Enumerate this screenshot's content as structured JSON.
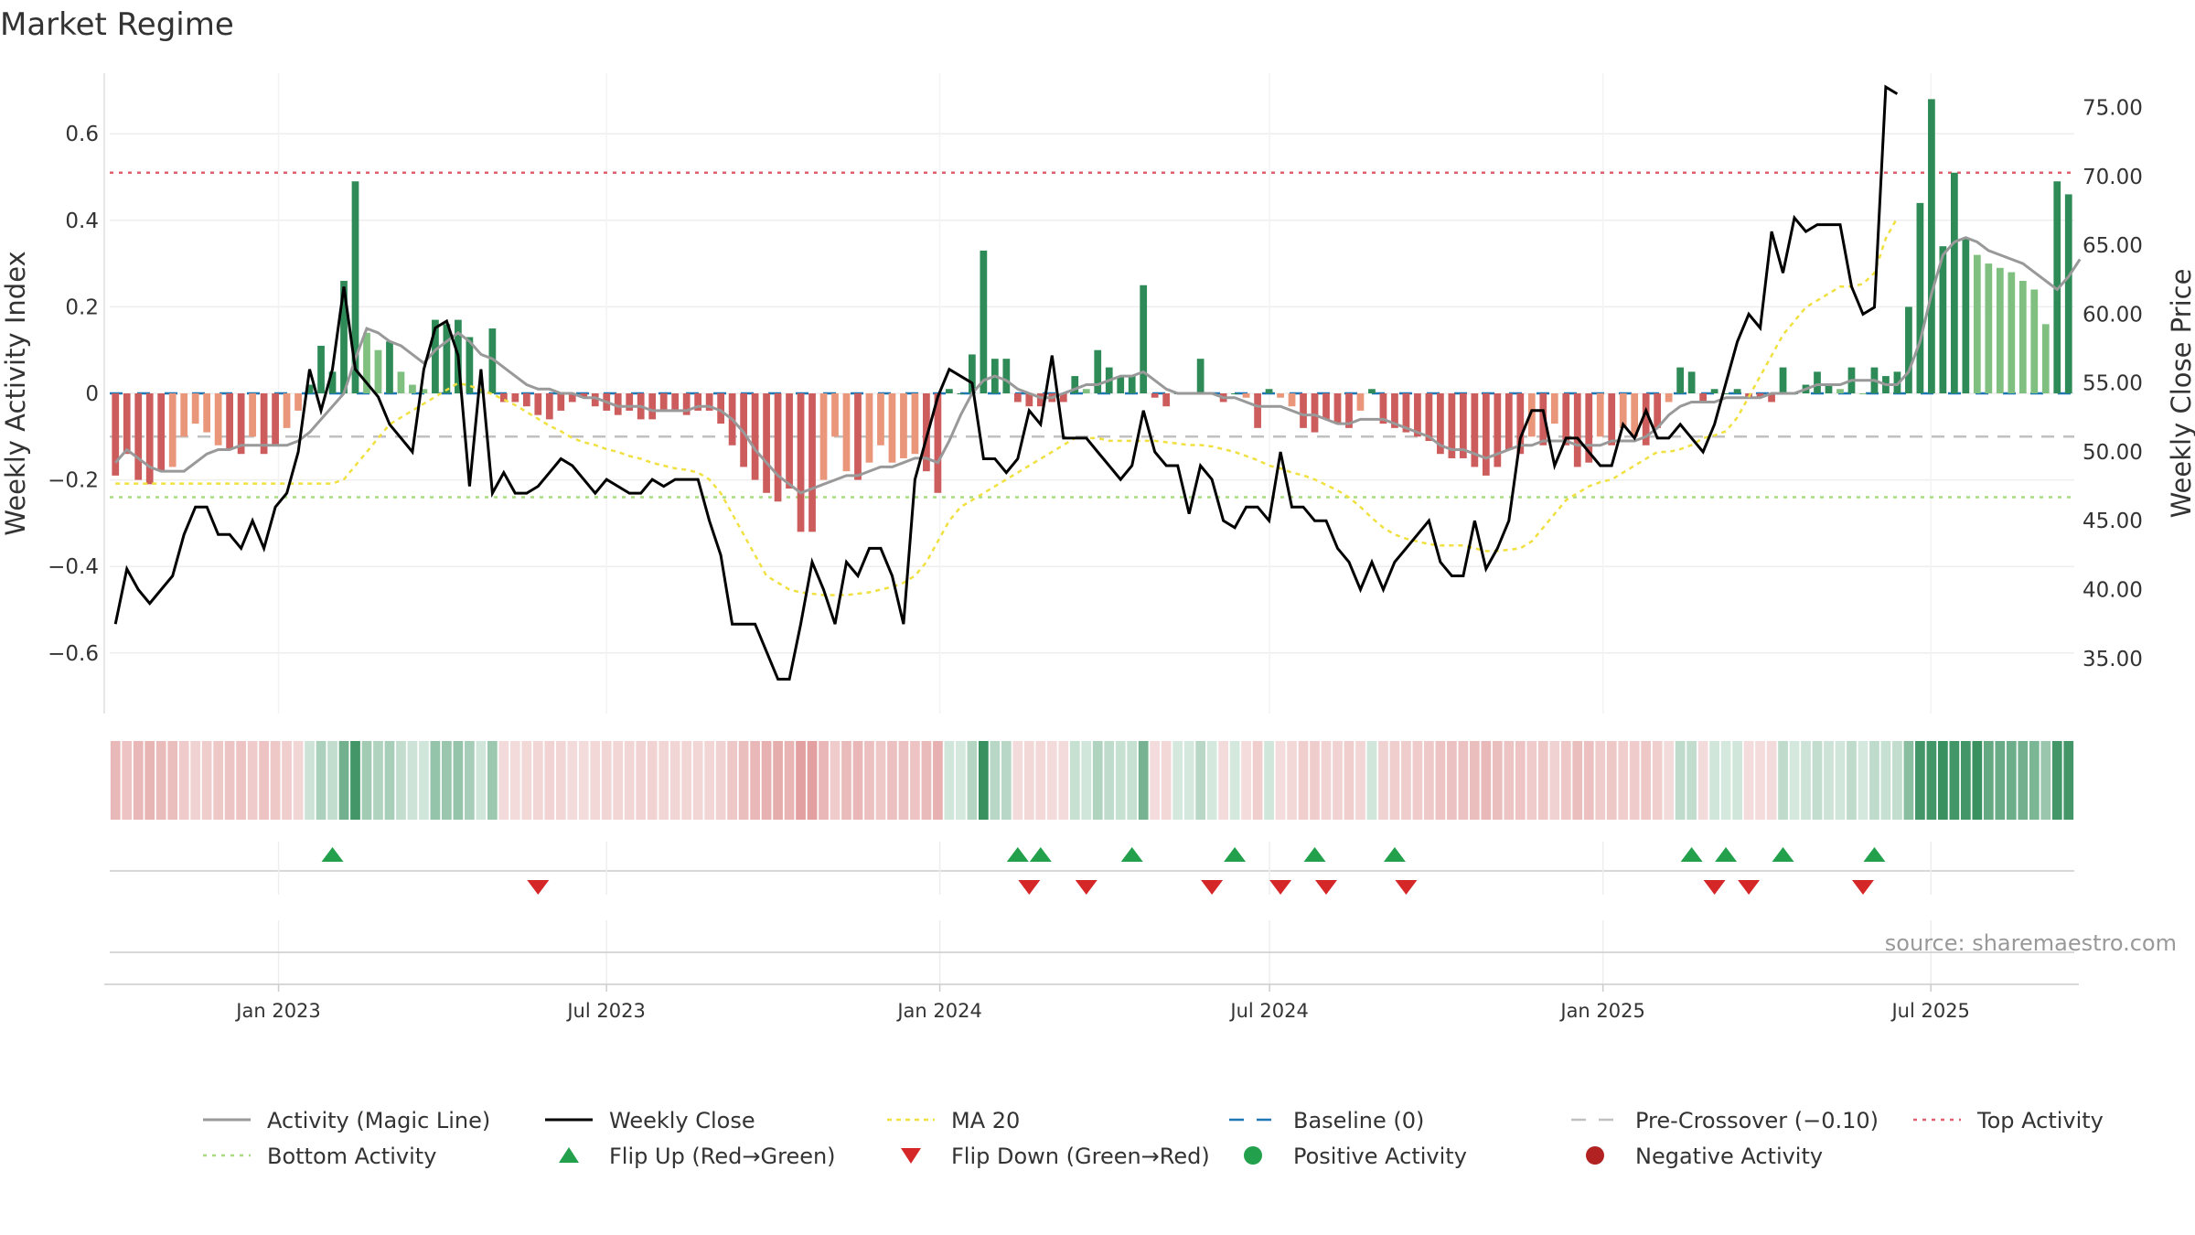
{
  "title": "Market Regime",
  "source": "source: sharemaestro.com",
  "colors": {
    "pos_dark": "#2e8b57",
    "pos_light": "#7fbf7f",
    "neg_dark": "#cd5c5c",
    "neg_light": "#e9967a",
    "weekly_close": "#000000",
    "magic_line": "#999999",
    "ma20": "#f0e040",
    "top_line": "#e06070",
    "bottom_line": "#a8dc80",
    "pre_cross": "#c0c0c0",
    "baseline": "#1f77b4",
    "flip_up": "#22a04b",
    "flip_down": "#d62728",
    "pos_dot": "#22a04b",
    "neg_dot": "#b22222"
  },
  "chart_data": {
    "type": "bar",
    "xlabel": "",
    "ylabel_left": "Weekly Activity Index",
    "ylabel_right": "Weekly Close Price",
    "ylim_left": [
      -0.74,
      0.74
    ],
    "ylim_right": [
      31.0,
      77.5
    ],
    "yticks_left": [
      {
        "v": 0.6,
        "label": "0.6"
      },
      {
        "v": 0.4,
        "label": "0.4"
      },
      {
        "v": 0.2,
        "label": "0.2"
      },
      {
        "v": 0,
        "label": "0"
      },
      {
        "v": -0.2,
        "label": "−0.2"
      },
      {
        "v": -0.4,
        "label": "−0.4"
      },
      {
        "v": -0.6,
        "label": "−0.6"
      }
    ],
    "yticks_right": [
      {
        "v": 75,
        "label": "75.00"
      },
      {
        "v": 70,
        "label": "70.00"
      },
      {
        "v": 65,
        "label": "65.00"
      },
      {
        "v": 60,
        "label": "60.00"
      },
      {
        "v": 55,
        "label": "55.00"
      },
      {
        "v": 50,
        "label": "50.00"
      },
      {
        "v": 45,
        "label": "45.00"
      },
      {
        "v": 40,
        "label": "40.00"
      },
      {
        "v": 35,
        "label": "35.00"
      }
    ],
    "date_range": [
      "2022-10-03",
      "2025-09-15"
    ],
    "xticks": [
      {
        "date": "2023-01-01",
        "label": "Jan 2023"
      },
      {
        "date": "2023-07-01",
        "label": "Jul 2023"
      },
      {
        "date": "2024-01-01",
        "label": "Jan 2024"
      },
      {
        "date": "2024-07-01",
        "label": "Jul 2024"
      },
      {
        "date": "2025-01-01",
        "label": "Jan 2025"
      },
      {
        "date": "2025-07-01",
        "label": "Jul 2025"
      }
    ],
    "top_activity": 0.51,
    "bottom_activity": -0.24,
    "pre_crossover": -0.1,
    "activity": [
      -0.19,
      -0.14,
      -0.2,
      -0.21,
      -0.18,
      -0.17,
      -0.1,
      -0.07,
      -0.09,
      -0.12,
      -0.13,
      -0.14,
      -0.1,
      -0.14,
      -0.12,
      -0.08,
      -0.04,
      0.02,
      0.11,
      0.05,
      0.26,
      0.49,
      0.14,
      0.1,
      0.12,
      0.05,
      0.02,
      0.01,
      0.17,
      0.16,
      0.17,
      0.13,
      0.01,
      0.15,
      -0.02,
      -0.02,
      -0.03,
      -0.05,
      -0.06,
      -0.04,
      -0.02,
      -0.01,
      -0.03,
      -0.04,
      -0.05,
      -0.04,
      -0.06,
      -0.06,
      -0.04,
      -0.04,
      -0.05,
      -0.04,
      -0.04,
      -0.07,
      -0.12,
      -0.17,
      -0.2,
      -0.23,
      -0.25,
      -0.22,
      -0.32,
      -0.32,
      -0.2,
      -0.1,
      -0.18,
      -0.2,
      -0.16,
      -0.12,
      -0.16,
      -0.15,
      -0.14,
      -0.18,
      -0.23,
      0.01,
      0.0,
      0.09,
      0.33,
      0.08,
      0.08,
      -0.02,
      -0.03,
      -0.03,
      -0.02,
      -0.02,
      0.04,
      0.01,
      0.1,
      0.06,
      0.04,
      0.04,
      0.25,
      -0.01,
      -0.03,
      0.0,
      0.0,
      0.08,
      0.0,
      -0.02,
      0.0,
      -0.01,
      -0.08,
      0.01,
      -0.01,
      -0.03,
      -0.08,
      -0.09,
      -0.06,
      -0.07,
      -0.08,
      -0.04,
      0.01,
      -0.07,
      -0.08,
      -0.09,
      -0.1,
      -0.11,
      -0.14,
      -0.15,
      -0.15,
      -0.17,
      -0.19,
      -0.17,
      -0.13,
      -0.14,
      -0.1,
      -0.12,
      -0.07,
      -0.12,
      -0.17,
      -0.16,
      -0.1,
      -0.12,
      -0.08,
      -0.1,
      -0.12,
      -0.08,
      -0.02,
      0.06,
      0.05,
      -0.02,
      0.01,
      0.0,
      0.01,
      -0.01,
      -0.01,
      -0.02,
      0.06,
      0.0,
      0.02,
      0.05,
      0.02,
      0.01,
      0.06,
      0.0,
      0.06,
      0.04,
      0.05,
      0.2,
      0.44,
      0.68,
      0.34,
      0.51,
      0.36,
      0.32,
      0.3,
      0.29,
      0.28,
      0.26,
      0.24,
      0.16,
      0.49,
      0.46
    ],
    "magic_line": [
      -0.16,
      -0.13,
      -0.15,
      -0.17,
      -0.18,
      -0.18,
      -0.18,
      -0.16,
      -0.14,
      -0.13,
      -0.13,
      -0.12,
      -0.12,
      -0.12,
      -0.12,
      -0.12,
      -0.11,
      -0.09,
      -0.06,
      -0.03,
      -0.0,
      0.08,
      0.15,
      0.14,
      0.12,
      0.11,
      0.09,
      0.07,
      0.1,
      0.12,
      0.14,
      0.12,
      0.09,
      0.08,
      0.06,
      0.04,
      0.02,
      0.01,
      0.01,
      0.0,
      0.0,
      -0.01,
      -0.01,
      -0.02,
      -0.03,
      -0.03,
      -0.03,
      -0.04,
      -0.04,
      -0.04,
      -0.04,
      -0.03,
      -0.03,
      -0.04,
      -0.06,
      -0.09,
      -0.13,
      -0.16,
      -0.19,
      -0.21,
      -0.23,
      -0.22,
      -0.21,
      -0.2,
      -0.19,
      -0.19,
      -0.18,
      -0.17,
      -0.17,
      -0.16,
      -0.15,
      -0.15,
      -0.16,
      -0.11,
      -0.05,
      0.0,
      0.03,
      0.04,
      0.03,
      0.01,
      0.0,
      -0.01,
      -0.01,
      0.0,
      0.01,
      0.02,
      0.02,
      0.03,
      0.04,
      0.04,
      0.05,
      0.03,
      0.01,
      0.0,
      0.0,
      0.0,
      0.0,
      -0.01,
      -0.01,
      -0.02,
      -0.03,
      -0.03,
      -0.03,
      -0.04,
      -0.05,
      -0.05,
      -0.06,
      -0.07,
      -0.07,
      -0.06,
      -0.06,
      -0.06,
      -0.07,
      -0.08,
      -0.09,
      -0.1,
      -0.12,
      -0.13,
      -0.13,
      -0.14,
      -0.15,
      -0.14,
      -0.13,
      -0.12,
      -0.12,
      -0.11,
      -0.11,
      -0.11,
      -0.12,
      -0.12,
      -0.12,
      -0.11,
      -0.11,
      -0.11,
      -0.1,
      -0.08,
      -0.05,
      -0.03,
      -0.02,
      -0.02,
      -0.02,
      -0.01,
      -0.01,
      -0.01,
      -0.01,
      -0.0,
      0.0,
      0.0,
      0.01,
      0.02,
      0.02,
      0.02,
      0.03,
      0.03,
      0.03,
      0.02,
      0.02,
      0.05,
      0.12,
      0.23,
      0.32,
      0.35,
      0.36,
      0.35,
      0.33,
      0.32,
      0.31,
      0.3,
      0.28,
      0.26,
      0.24,
      0.27,
      0.31
    ],
    "weekly_close": [
      37.5,
      41.5,
      40.0,
      39.0,
      40.0,
      41.0,
      44.0,
      46.0,
      46.0,
      44.0,
      44.0,
      43.0,
      45.0,
      43.0,
      46.0,
      47.0,
      50.0,
      56.0,
      53.0,
      56.0,
      62.0,
      56.0,
      55.0,
      54.0,
      52.0,
      51.0,
      50.0,
      56.0,
      59.0,
      59.5,
      57.0,
      47.5,
      56.0,
      47.0,
      48.5,
      47.0,
      47.0,
      47.5,
      48.5,
      49.5,
      49.0,
      48.0,
      47.0,
      48.0,
      47.5,
      47.0,
      47.0,
      48.0,
      47.5,
      48.0,
      48.0,
      48.0,
      45.0,
      42.5,
      37.5,
      37.5,
      37.5,
      35.5,
      33.5,
      33.5,
      37.5,
      42.0,
      40.0,
      37.5,
      42.0,
      41.0,
      43.0,
      43.0,
      41.0,
      37.5,
      48.0,
      51.0,
      54.0,
      56.0,
      55.5,
      55.0,
      49.5,
      49.5,
      48.5,
      49.5,
      53.0,
      52.0,
      57.0,
      51.0,
      51.0,
      51.0,
      50.0,
      49.0,
      48.0,
      49.0,
      53.0,
      50.0,
      49.0,
      49.0,
      45.5,
      49.0,
      48.0,
      45.0,
      44.5,
      46.0,
      46.0,
      45.0,
      50.0,
      46.0,
      46.0,
      45.0,
      45.0,
      43.0,
      42.0,
      40.0,
      42.0,
      40.0,
      42.0,
      43.0,
      44.0,
      45.0,
      42.0,
      41.0,
      41.0,
      45.0,
      41.5,
      43.0,
      45.0,
      51.0,
      53.0,
      53.0,
      49.0,
      51.0,
      51.0,
      50.0,
      49.0,
      49.0,
      52.0,
      51.0,
      53.0,
      51.0,
      51.0,
      52.0,
      51.0,
      50.0,
      52.0,
      55.0,
      58.0,
      60.0,
      59.0,
      66.0,
      63.0,
      67.0,
      66.0,
      66.5,
      66.5,
      66.5,
      62.0,
      60.0,
      60.5,
      76.5,
      76.0
    ],
    "ma20": [
      47.7,
      47.7,
      47.7,
      47.7,
      47.7,
      47.7,
      47.7,
      47.7,
      47.7,
      47.7,
      47.7,
      47.7,
      47.7,
      47.7,
      47.7,
      47.7,
      47.7,
      47.7,
      47.7,
      47.7,
      48.0,
      49.0,
      50.0,
      51.0,
      52.0,
      52.5,
      53.0,
      53.5,
      54.0,
      54.5,
      55.0,
      54.8,
      54.5,
      54.2,
      53.8,
      53.4,
      52.9,
      52.4,
      51.9,
      51.5,
      51.0,
      50.7,
      50.5,
      50.2,
      50.0,
      49.7,
      49.5,
      49.2,
      49.0,
      48.8,
      48.7,
      48.5,
      48.0,
      47.0,
      45.5,
      44.0,
      42.5,
      41.0,
      40.5,
      40.0,
      39.8,
      39.7,
      39.6,
      39.6,
      39.6,
      39.7,
      39.8,
      40.0,
      40.2,
      40.5,
      41.0,
      42.0,
      43.5,
      45.0,
      46.0,
      46.5,
      47.0,
      47.5,
      48.0,
      48.5,
      49.0,
      49.5,
      50.0,
      50.5,
      51.0,
      51.0,
      51.0,
      50.8,
      50.8,
      50.8,
      50.8,
      50.8,
      50.7,
      50.6,
      50.5,
      50.5,
      50.4,
      50.2,
      50.0,
      49.7,
      49.4,
      49.0,
      48.8,
      48.5,
      48.3,
      48.0,
      47.6,
      47.2,
      46.7,
      46.0,
      45.2,
      44.5,
      44.0,
      43.7,
      43.5,
      43.3,
      43.2,
      43.2,
      43.2,
      43.0,
      42.8,
      42.8,
      42.9,
      43.0,
      43.5,
      44.5,
      45.5,
      46.5,
      47.0,
      47.5,
      47.8,
      48.0,
      48.5,
      49.0,
      49.5,
      50.0,
      50.0,
      50.2,
      50.5,
      51.0,
      51.2,
      51.5,
      52.5,
      54.0,
      55.5,
      57.0,
      58.5,
      59.5,
      60.5,
      61.0,
      61.5,
      62.0,
      62.0,
      62.2,
      63.0,
      65.5,
      67.0
    ],
    "flip_up": [
      19,
      79,
      81,
      89,
      98,
      105,
      112,
      138,
      141,
      146,
      154
    ],
    "flip_down": [
      37,
      80,
      85,
      96,
      102,
      106,
      113,
      140,
      143,
      153
    ]
  },
  "legend": [
    {
      "key": "magic",
      "label": "Activity (Magic Line)"
    },
    {
      "key": "close",
      "label": "Weekly Close"
    },
    {
      "key": "ma20",
      "label": "MA 20"
    },
    {
      "key": "baseline",
      "label": "Baseline (0)"
    },
    {
      "key": "precross",
      "label": "Pre-Crossover (−0.10)"
    },
    {
      "key": "top",
      "label": "Top Activity"
    },
    {
      "key": "bottom",
      "label": "Bottom Activity"
    },
    {
      "key": "flipup",
      "label": "Flip Up (Red→Green)"
    },
    {
      "key": "flipdown",
      "label": "Flip Down (Green→Red)"
    },
    {
      "key": "posact",
      "label": "Positive Activity"
    },
    {
      "key": "negact",
      "label": "Negative Activity"
    }
  ]
}
